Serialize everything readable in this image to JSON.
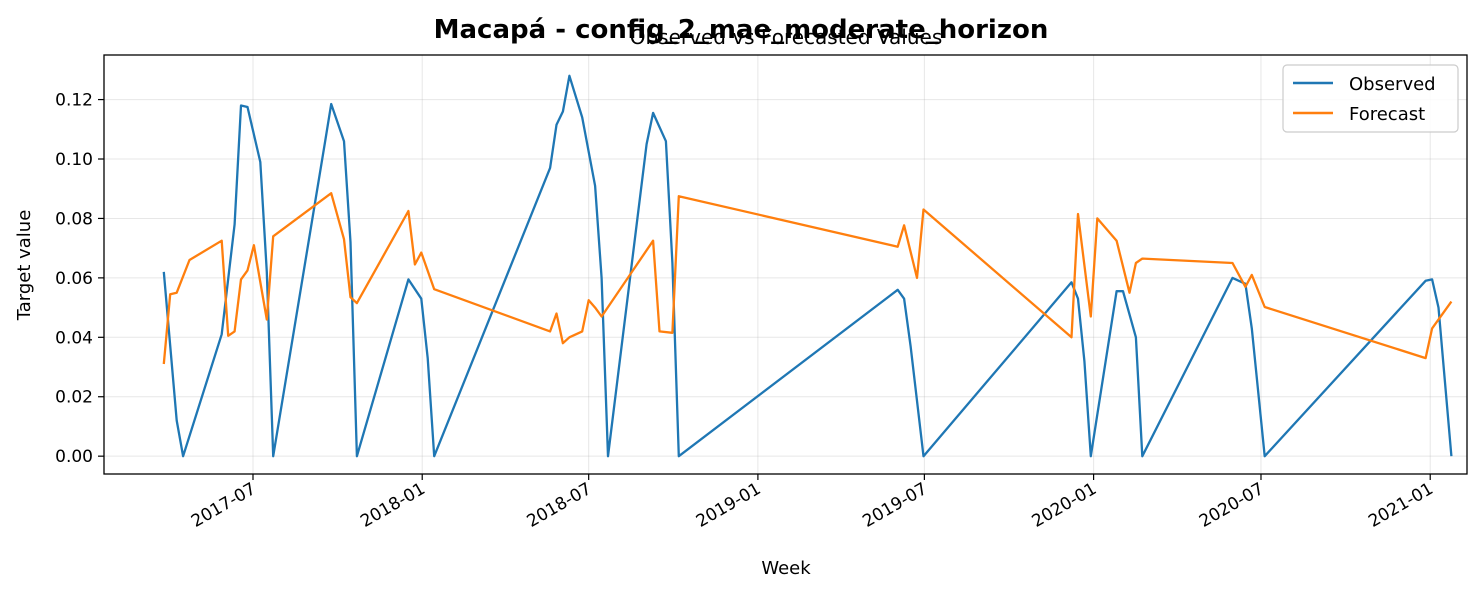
{
  "chart_data": {
    "type": "line",
    "suptitle": "Macapá - config_2_mae_moderate_horizon",
    "title": "Observed vs Forecasted Values",
    "xlabel": "Week",
    "ylabel": "Target value",
    "xlim": [
      "2017-01-20",
      "2021-02-10"
    ],
    "ylim": [
      -0.006,
      0.135
    ],
    "x_ticks": [
      "2017-07",
      "2018-01",
      "2018-07",
      "2019-01",
      "2019-07",
      "2020-01",
      "2020-07",
      "2021-01"
    ],
    "y_ticks": [
      "0.00",
      "0.02",
      "0.04",
      "0.06",
      "0.08",
      "0.10",
      "0.12"
    ],
    "grid": true,
    "legend_position": "top-right",
    "series": [
      {
        "name": "Observed",
        "color": "#1f77b4",
        "points": [
          [
            "2017-03-26",
            0.062
          ],
          [
            "2017-04-09",
            0.012
          ],
          [
            "2017-04-16",
            0.0
          ],
          [
            "2017-05-28",
            0.041
          ],
          [
            "2017-06-11",
            0.078
          ],
          [
            "2017-06-18",
            0.118
          ],
          [
            "2017-06-25",
            0.1175
          ],
          [
            "2017-07-09",
            0.099
          ],
          [
            "2017-07-16",
            0.062
          ],
          [
            "2017-07-23",
            0.0
          ],
          [
            "2017-09-17",
            0.105
          ],
          [
            "2017-09-24",
            0.1185
          ],
          [
            "2017-10-08",
            0.106
          ],
          [
            "2017-10-15",
            0.072
          ],
          [
            "2017-10-22",
            0.0
          ],
          [
            "2017-12-17",
            0.0595
          ],
          [
            "2017-12-31",
            0.053
          ],
          [
            "2018-01-07",
            0.033
          ],
          [
            "2018-01-14",
            0.0
          ],
          [
            "2018-05-20",
            0.097
          ],
          [
            "2018-05-27",
            0.1115
          ],
          [
            "2018-06-03",
            0.116
          ],
          [
            "2018-06-10",
            0.128
          ],
          [
            "2018-06-24",
            0.114
          ],
          [
            "2018-07-08",
            0.091
          ],
          [
            "2018-07-15",
            0.06
          ],
          [
            "2018-07-22",
            0.0
          ],
          [
            "2018-09-02",
            0.105
          ],
          [
            "2018-09-09",
            0.1155
          ],
          [
            "2018-09-23",
            0.106
          ],
          [
            "2018-09-30",
            0.065
          ],
          [
            "2018-10-07",
            0.0
          ],
          [
            "2019-06-02",
            0.056
          ],
          [
            "2019-06-09",
            0.053
          ],
          [
            "2019-06-16",
            0.037
          ],
          [
            "2019-06-30",
            0.0
          ],
          [
            "2019-12-08",
            0.0585
          ],
          [
            "2019-12-15",
            0.053
          ],
          [
            "2019-12-22",
            0.032
          ],
          [
            "2019-12-29",
            0.0
          ],
          [
            "2020-01-26",
            0.0555
          ],
          [
            "2020-02-02",
            0.0555
          ],
          [
            "2020-02-16",
            0.04
          ],
          [
            "2020-02-23",
            0.0
          ],
          [
            "2020-05-31",
            0.06
          ],
          [
            "2020-06-14",
            0.058
          ],
          [
            "2020-06-21",
            0.043
          ],
          [
            "2020-07-05",
            0.0
          ],
          [
            "2020-12-27",
            0.059
          ],
          [
            "2021-01-03",
            0.0595
          ],
          [
            "2021-01-10",
            0.05
          ],
          [
            "2021-01-24",
            0.0
          ]
        ]
      },
      {
        "name": "Forecast",
        "color": "#ff7f0e",
        "points": [
          [
            "2017-03-26",
            0.031
          ],
          [
            "2017-04-02",
            0.0545
          ],
          [
            "2017-04-09",
            0.055
          ],
          [
            "2017-04-23",
            0.066
          ],
          [
            "2017-05-28",
            0.0725
          ],
          [
            "2017-06-04",
            0.0405
          ],
          [
            "2017-06-11",
            0.042
          ],
          [
            "2017-06-18",
            0.0595
          ],
          [
            "2017-06-25",
            0.0625
          ],
          [
            "2017-07-02",
            0.071
          ],
          [
            "2017-07-16",
            0.046
          ],
          [
            "2017-07-23",
            0.074
          ],
          [
            "2017-09-24",
            0.0885
          ],
          [
            "2017-10-08",
            0.073
          ],
          [
            "2017-10-15",
            0.0535
          ],
          [
            "2017-10-22",
            0.0515
          ],
          [
            "2017-12-17",
            0.0825
          ],
          [
            "2017-12-24",
            0.0645
          ],
          [
            "2017-12-31",
            0.0685
          ],
          [
            "2018-01-14",
            0.0562
          ],
          [
            "2018-05-20",
            0.042
          ],
          [
            "2018-05-27",
            0.048
          ],
          [
            "2018-06-03",
            0.038
          ],
          [
            "2018-06-10",
            0.04
          ],
          [
            "2018-06-24",
            0.042
          ],
          [
            "2018-07-01",
            0.0525
          ],
          [
            "2018-07-08",
            0.05
          ],
          [
            "2018-07-15",
            0.047
          ],
          [
            "2018-09-09",
            0.0725
          ],
          [
            "2018-09-16",
            0.042
          ],
          [
            "2018-09-30",
            0.0415
          ],
          [
            "2018-10-07",
            0.0875
          ],
          [
            "2019-06-02",
            0.0705
          ],
          [
            "2019-06-09",
            0.0777
          ],
          [
            "2019-06-23",
            0.06
          ],
          [
            "2019-06-30",
            0.083
          ],
          [
            "2019-12-08",
            0.04
          ],
          [
            "2019-12-15",
            0.0815
          ],
          [
            "2019-12-29",
            0.047
          ],
          [
            "2020-01-05",
            0.08
          ],
          [
            "2020-01-26",
            0.0725
          ],
          [
            "2020-02-09",
            0.055
          ],
          [
            "2020-02-16",
            0.065
          ],
          [
            "2020-02-23",
            0.0665
          ],
          [
            "2020-05-31",
            0.065
          ],
          [
            "2020-06-14",
            0.057
          ],
          [
            "2020-06-21",
            0.061
          ],
          [
            "2020-07-05",
            0.0502
          ],
          [
            "2020-12-27",
            0.033
          ],
          [
            "2021-01-03",
            0.043
          ],
          [
            "2021-01-24",
            0.052
          ]
        ]
      }
    ]
  }
}
